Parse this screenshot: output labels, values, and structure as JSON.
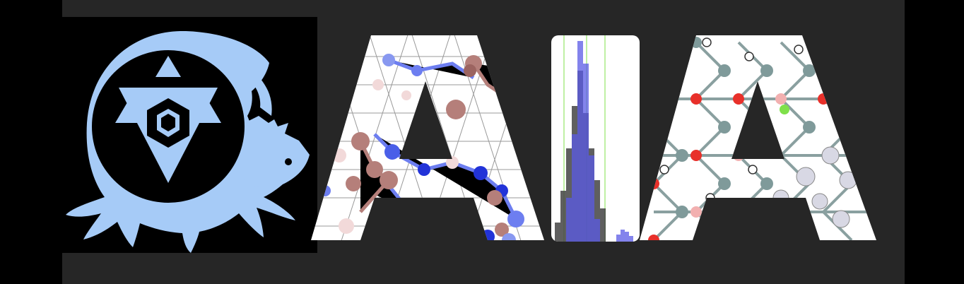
{
  "banner": {
    "colors": {
      "page_background": "#000000",
      "banner_background": "#262626",
      "logo_panel": "#000000",
      "logo_blue": "#a6cbf7",
      "letter_fill": "#ffffff",
      "atom_blue": "#6d7ef0",
      "atom_mauve": "#b57f7a",
      "atom_pink": "#f2d9d9",
      "atom_red": "#e8302a",
      "atom_grey": "#7f9a9a",
      "atom_green": "#7fe04a",
      "hist_blue": "#5a5ae6",
      "hist_grey": "#444444"
    },
    "logo": {
      "icon": "ouroboros-dragon-hexagram-icon"
    },
    "wordmark": {
      "letters": [
        {
          "glyph": "A",
          "texture": "blue-mauve-crystal-lattice"
        },
        {
          "glyph": "I",
          "texture": "overlapping-histograms"
        },
        {
          "glyph": "A",
          "texture": "red-grey-crystal-lattice"
        }
      ]
    }
  }
}
